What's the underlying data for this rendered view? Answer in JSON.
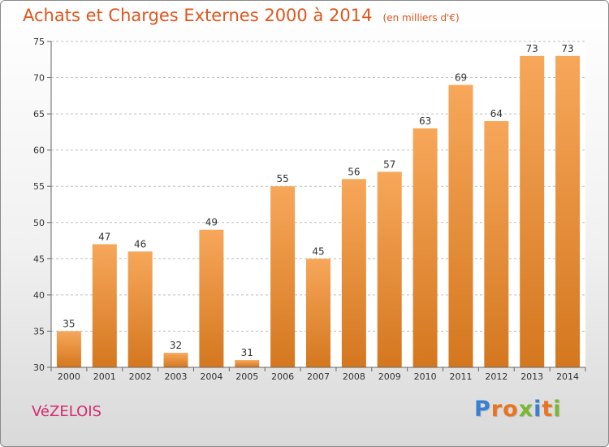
{
  "header": {
    "title": "Achats et Charges Externes 2000 à 2014",
    "subtitle": "(en milliers d'€)"
  },
  "footer": {
    "commune": "VéZELOIS",
    "brand": "Proxiti"
  },
  "colors": {
    "title": "#e0551c",
    "commune": "#d42a6e",
    "bar_top": "#f7a75a",
    "bar_bottom": "#d4771f",
    "brand_letters": [
      "#3a7fd0",
      "#e8741f",
      "#e8741f",
      "#78b833",
      "#3a7fd0",
      "#e8741f",
      "#78b833"
    ]
  },
  "chart_data": {
    "type": "bar",
    "title": "Achats et Charges Externes 2000 à 2014",
    "subtitle": "(en milliers d'€)",
    "xlabel": "",
    "ylabel": "",
    "categories": [
      "2000",
      "2001",
      "2002",
      "2003",
      "2004",
      "2005",
      "2006",
      "2007",
      "2008",
      "2009",
      "2010",
      "2011",
      "2012",
      "2013",
      "2014"
    ],
    "values": [
      35,
      47,
      46,
      32,
      49,
      31,
      55,
      45,
      56,
      57,
      63,
      69,
      64,
      73,
      73
    ],
    "ylim": [
      30,
      75
    ],
    "yticks": [
      30,
      35,
      40,
      45,
      50,
      55,
      60,
      65,
      70,
      75
    ],
    "grid": true,
    "grid_style": "dashed horizontal",
    "data_labels": true,
    "legend": "none"
  }
}
